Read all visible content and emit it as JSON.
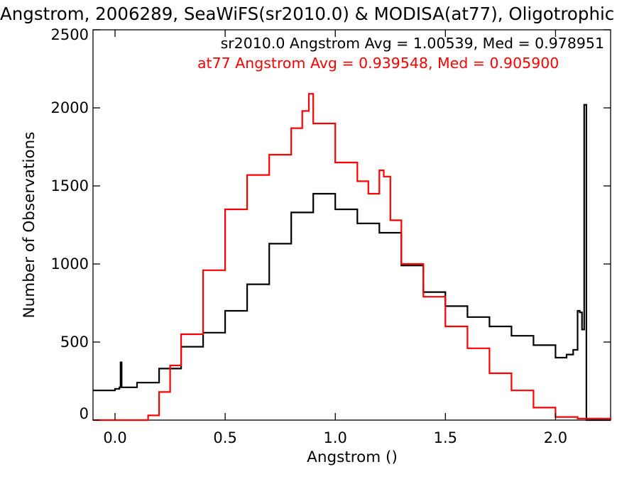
{
  "chart_data": {
    "type": "line",
    "title": "Angstrom, 2006289, SeaWiFS(sr2010.0) & MODISA(at77), Oligotrophic",
    "xlabel": "Angstrom ()",
    "ylabel": "Number of Observations",
    "xlim": [
      -0.1,
      2.25
    ],
    "ylim": [
      0,
      2500
    ],
    "xticks": [
      0.0,
      0.5,
      1.0,
      1.5,
      2.0
    ],
    "xtick_labels": [
      "0.0",
      "0.5",
      "1.0",
      "1.5",
      "2.0"
    ],
    "yticks": [
      0,
      500,
      1000,
      1500,
      2000,
      2500
    ],
    "ytick_labels": [
      "0",
      "500",
      "1000",
      "1500",
      "2000",
      "2500"
    ],
    "grid": false,
    "legend": "none",
    "annotations": [
      {
        "text": "sr2010.0 Angstrom Avg = 1.00539, Med = 0.978951",
        "color": "#000000"
      },
      {
        "text": "at77 Angstrom Avg = 0.939548, Med = 0.905900",
        "color": "#ff0000"
      }
    ],
    "series": [
      {
        "color": "#000000",
        "step": true,
        "x": [
          -0.1,
          0.0,
          0.02,
          0.025,
          0.03,
          0.1,
          0.2,
          0.3,
          0.4,
          0.5,
          0.6,
          0.7,
          0.8,
          0.9,
          1.0,
          1.1,
          1.2,
          1.3,
          1.4,
          1.5,
          1.6,
          1.7,
          1.8,
          1.9,
          2.0,
          2.05,
          2.08,
          2.1,
          2.11,
          2.12,
          2.13,
          2.14,
          2.15,
          2.25
        ],
        "values": [
          190,
          200,
          210,
          370,
          210,
          240,
          330,
          470,
          560,
          700,
          870,
          1130,
          1330,
          1450,
          1350,
          1260,
          1200,
          990,
          820,
          730,
          660,
          600,
          540,
          480,
          400,
          420,
          450,
          700,
          690,
          580,
          2020,
          0,
          0,
          0
        ]
      },
      {
        "color": "#ff0000",
        "step": true,
        "x": [
          -0.1,
          0.15,
          0.2,
          0.25,
          0.3,
          0.4,
          0.5,
          0.6,
          0.7,
          0.8,
          0.85,
          0.88,
          0.9,
          1.0,
          1.1,
          1.15,
          1.2,
          1.22,
          1.25,
          1.3,
          1.4,
          1.5,
          1.6,
          1.7,
          1.8,
          1.9,
          2.0,
          2.1,
          2.25
        ],
        "values": [
          0,
          30,
          180,
          350,
          550,
          960,
          1350,
          1570,
          1700,
          1870,
          1980,
          2090,
          1900,
          1650,
          1530,
          1450,
          1600,
          1560,
          1280,
          1000,
          790,
          600,
          460,
          300,
          190,
          80,
          20,
          10,
          0
        ]
      }
    ]
  }
}
